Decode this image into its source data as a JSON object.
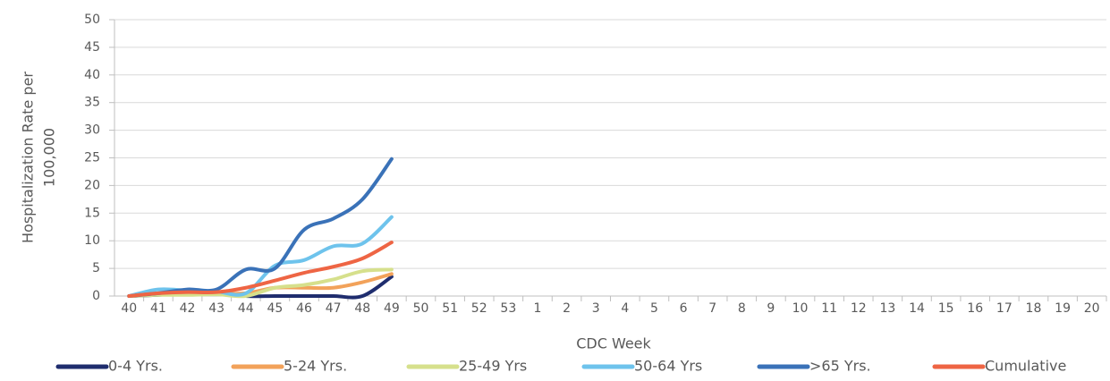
{
  "chart_data": {
    "type": "line",
    "x_label": "CDC Week",
    "y_label": [
      "Hospitalization Rate per",
      "100,000"
    ],
    "categories": [
      "40",
      "41",
      "42",
      "43",
      "44",
      "45",
      "46",
      "47",
      "48",
      "49",
      "50",
      "51",
      "52",
      "53",
      "1",
      "2",
      "3",
      "4",
      "5",
      "6",
      "7",
      "8",
      "9",
      "10",
      "11",
      "12",
      "13",
      "14",
      "15",
      "16",
      "17",
      "18",
      "19",
      "20"
    ],
    "ylim": [
      0,
      50
    ],
    "yticks": [
      0,
      5,
      10,
      15,
      20,
      25,
      30,
      35,
      40,
      45,
      50
    ],
    "grid": true,
    "legend": "bottom",
    "series": [
      {
        "name": "0-4 Yrs.",
        "color": "#1f2d6e",
        "values": [
          0,
          0.2,
          0.5,
          0.5,
          0,
          0,
          0,
          0,
          0,
          3.5,
          null,
          null,
          null,
          null,
          null,
          null,
          null,
          null,
          null,
          null,
          null,
          null,
          null,
          null,
          null,
          null,
          null,
          null,
          null,
          null,
          null,
          null,
          null,
          null
        ]
      },
      {
        "name": "5-24 Yrs.",
        "color": "#f2a25a",
        "values": [
          0,
          0.3,
          0.5,
          0.5,
          0.5,
          1.5,
          1.5,
          1.5,
          2.5,
          4,
          null,
          null,
          null,
          null,
          null,
          null,
          null,
          null,
          null,
          null,
          null,
          null,
          null,
          null,
          null,
          null,
          null,
          null,
          null,
          null,
          null,
          null,
          null,
          null
        ]
      },
      {
        "name": "25-49 Yrs",
        "color": "#d6e08c",
        "values": [
          0,
          0.2,
          0.2,
          0.3,
          0,
          1.5,
          2,
          3,
          4.5,
          4.8,
          null,
          null,
          null,
          null,
          null,
          null,
          null,
          null,
          null,
          null,
          null,
          null,
          null,
          null,
          null,
          null,
          null,
          null,
          null,
          null,
          null,
          null,
          null,
          null
        ]
      },
      {
        "name": "50-64 Yrs",
        "color": "#6ec3ec",
        "values": [
          0,
          1.2,
          1,
          0.8,
          0.5,
          5.5,
          6.5,
          9,
          9.5,
          14.3,
          null,
          null,
          null,
          null,
          null,
          null,
          null,
          null,
          null,
          null,
          null,
          null,
          null,
          null,
          null,
          null,
          null,
          null,
          null,
          null,
          null,
          null,
          null,
          null
        ]
      },
      {
        "name": ">65 Yrs.",
        "color": "#3a72b8",
        "values": [
          0,
          0.5,
          1.2,
          1.2,
          4.8,
          5,
          12,
          14,
          17.5,
          24.8,
          null,
          null,
          null,
          null,
          null,
          null,
          null,
          null,
          null,
          null,
          null,
          null,
          null,
          null,
          null,
          null,
          null,
          null,
          null,
          null,
          null,
          null,
          null,
          null
        ]
      },
      {
        "name": "Cumulative",
        "color": "#ee6544",
        "values": [
          0,
          0.5,
          0.7,
          0.7,
          1.5,
          2.8,
          4.2,
          5.3,
          6.8,
          9.7,
          null,
          null,
          null,
          null,
          null,
          null,
          null,
          null,
          null,
          null,
          null,
          null,
          null,
          null,
          null,
          null,
          null,
          null,
          null,
          null,
          null,
          null,
          null,
          null
        ]
      }
    ]
  }
}
